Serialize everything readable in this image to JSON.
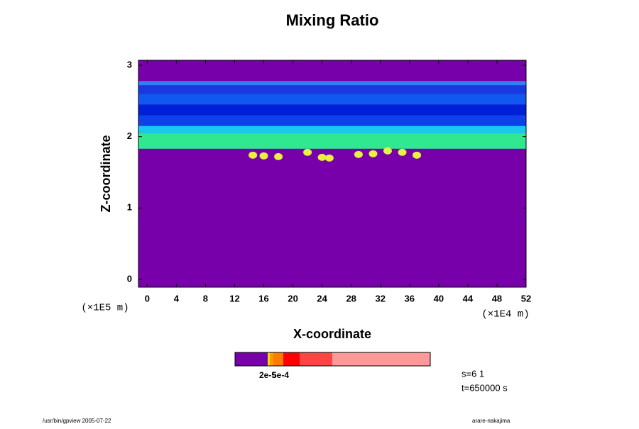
{
  "chart_data": {
    "type": "contour",
    "title": "Mixing Ratio",
    "xlabel": "X-coordinate",
    "ylabel": "Z-coordinate",
    "x_unit": "(×1E4 m)",
    "y_unit": "(×1E5 m)",
    "xlim": [
      -1.2,
      52
    ],
    "xticks": [
      0,
      4,
      8,
      12,
      16,
      20,
      24,
      28,
      32,
      36,
      40,
      44,
      48,
      52
    ],
    "ylim": [
      -0.11,
      3.07
    ],
    "yticks": [
      0,
      1,
      2,
      3
    ],
    "background_color": "#7700aa",
    "bands": [
      {
        "z": [
          1.83,
          2.05
        ],
        "color": "#30e890"
      },
      {
        "z": [
          2.05,
          2.15
        ],
        "color": "#18c8f0"
      },
      {
        "z": [
          2.15,
          2.3
        ],
        "color": "#1040e8"
      },
      {
        "z": [
          2.3,
          2.45
        ],
        "color": "#0020d8"
      },
      {
        "z": [
          2.45,
          2.6
        ],
        "color": "#1058f0"
      },
      {
        "z": [
          2.6,
          2.72
        ],
        "color": "#1838e0"
      },
      {
        "z": [
          2.72,
          2.78
        ],
        "color": "#3080f0"
      }
    ],
    "blobs": [
      {
        "x": [
          14.5,
          16,
          18,
          22,
          24,
          25,
          29,
          31,
          33,
          35,
          37
        ],
        "z": [
          1.74,
          1.73,
          1.72,
          1.78,
          1.71,
          1.7,
          1.75,
          1.76,
          1.8,
          1.78,
          1.74
        ],
        "color": "#e8f040"
      }
    ],
    "colorbar": {
      "colors": [
        "#7700aa",
        "#ffdd00",
        "#ff9900",
        "#ff7a00",
        "#ff0000",
        "#ff4444",
        "#ff9999"
      ],
      "labels": [
        "2e-5",
        "5e-4"
      ]
    },
    "step_label": "s=6 1",
    "time_label": "t=650000 s",
    "footer_left": "/usr/bin/gpview 2005-07-22",
    "footer_right": "arare-nakajima"
  }
}
